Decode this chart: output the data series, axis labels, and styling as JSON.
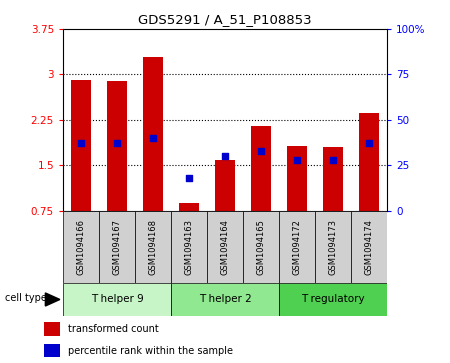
{
  "title": "GDS5291 / A_51_P108853",
  "samples": [
    "GSM1094166",
    "GSM1094167",
    "GSM1094168",
    "GSM1094163",
    "GSM1094164",
    "GSM1094165",
    "GSM1094172",
    "GSM1094173",
    "GSM1094174"
  ],
  "transformed_count": [
    2.91,
    2.89,
    3.28,
    0.88,
    1.58,
    2.15,
    1.82,
    1.8,
    2.37
  ],
  "percentile_rank": [
    37,
    37,
    40,
    18,
    30,
    33,
    28,
    28,
    37
  ],
  "cell_types": [
    {
      "label": "T helper 9",
      "start": 0,
      "end": 3,
      "color": "#c8f5c8"
    },
    {
      "label": "T helper 2",
      "start": 3,
      "end": 6,
      "color": "#90e890"
    },
    {
      "label": "T regulatory",
      "start": 6,
      "end": 9,
      "color": "#50d050"
    }
  ],
  "ylim_left": [
    0.75,
    3.75
  ],
  "ylim_right": [
    0,
    100
  ],
  "yticks_left": [
    0.75,
    1.5,
    2.25,
    3.0,
    3.75
  ],
  "ytick_labels_left": [
    "0.75",
    "1.5",
    "2.25",
    "3",
    "3.75"
  ],
  "yticks_right": [
    0,
    25,
    50,
    75,
    100
  ],
  "ytick_labels_right": [
    "0",
    "25",
    "50",
    "75",
    "100%"
  ],
  "bar_color": "#cc0000",
  "dot_color": "#0000cc",
  "bar_bottom": 0.75,
  "bar_width": 0.55,
  "dot_size": 18,
  "legend_items": [
    "transformed count",
    "percentile rank within the sample"
  ],
  "cell_type_label": "cell type"
}
